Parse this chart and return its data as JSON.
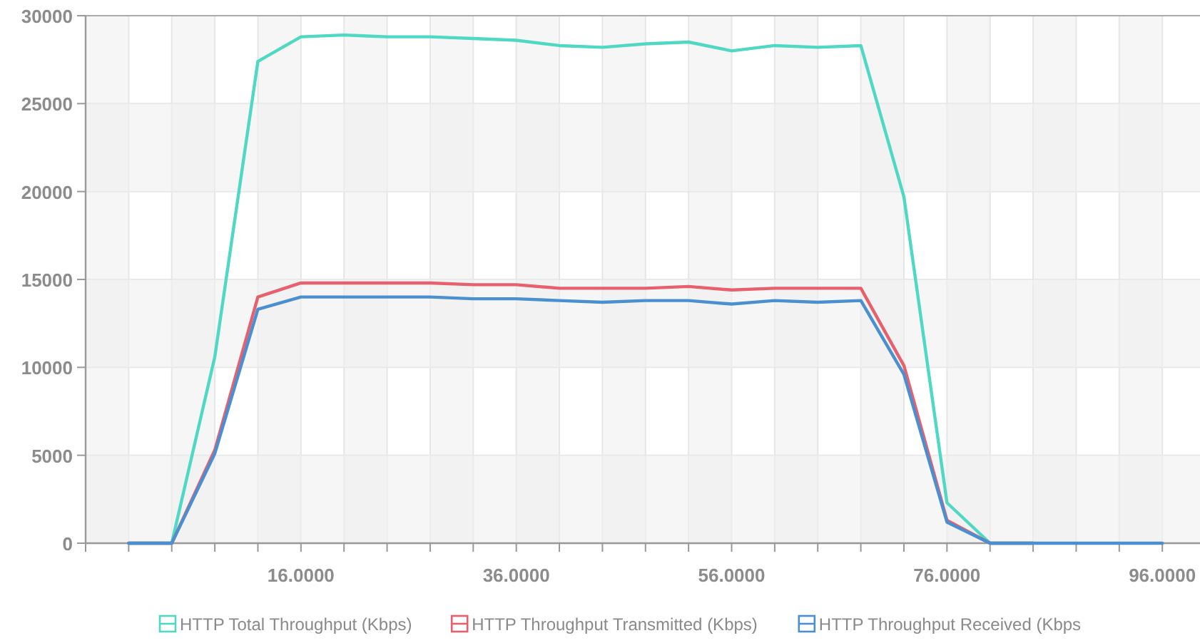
{
  "chart_data": {
    "type": "line",
    "x": [
      0,
      4,
      8,
      12,
      16,
      20,
      24,
      28,
      32,
      36,
      40,
      44,
      48,
      52,
      56,
      60,
      64,
      68,
      72,
      76,
      80,
      84,
      88,
      92,
      96
    ],
    "series": [
      {
        "name": "HTTP Total Throughput (Kbps)",
        "color": "#4fd8c4",
        "values": [
          0,
          0,
          10600,
          27400,
          28800,
          28900,
          28800,
          28800,
          28700,
          28600,
          28300,
          28200,
          28400,
          28500,
          28000,
          28300,
          28200,
          28300,
          19700,
          2300,
          0,
          0,
          null,
          null,
          null
        ]
      },
      {
        "name": "HTTP Throughput Transmitted (Kbps)",
        "color": "#e8606e",
        "values": [
          0,
          0,
          5300,
          14000,
          14800,
          14800,
          14800,
          14800,
          14700,
          14700,
          14500,
          14500,
          14500,
          14600,
          14400,
          14500,
          14500,
          14500,
          10100,
          1300,
          0,
          0,
          null,
          null,
          null
        ]
      },
      {
        "name": "HTTP Throughput Received (Kbps",
        "color": "#4a8fd0",
        "values": [
          0,
          0,
          5100,
          13300,
          14000,
          14000,
          14000,
          14000,
          13900,
          13900,
          13800,
          13700,
          13800,
          13800,
          13600,
          13800,
          13700,
          13800,
          9600,
          1200,
          0,
          0,
          0,
          0,
          0
        ]
      }
    ],
    "xlim": [
      -4,
      99.5
    ],
    "xticks": [
      {
        "value": -4,
        "label": null
      },
      {
        "value": 0,
        "label": null
      },
      {
        "value": 4,
        "label": null
      },
      {
        "value": 8,
        "label": null
      },
      {
        "value": 12,
        "label": null
      },
      {
        "value": 16,
        "label": "16.0000"
      },
      {
        "value": 20,
        "label": null
      },
      {
        "value": 24,
        "label": null
      },
      {
        "value": 28,
        "label": null
      },
      {
        "value": 32,
        "label": null
      },
      {
        "value": 36,
        "label": "36.0000"
      },
      {
        "value": 40,
        "label": null
      },
      {
        "value": 44,
        "label": null
      },
      {
        "value": 48,
        "label": null
      },
      {
        "value": 52,
        "label": null
      },
      {
        "value": 56,
        "label": "56.0000"
      },
      {
        "value": 60,
        "label": null
      },
      {
        "value": 64,
        "label": null
      },
      {
        "value": 68,
        "label": null
      },
      {
        "value": 72,
        "label": null
      },
      {
        "value": 76,
        "label": "76.0000"
      },
      {
        "value": 80,
        "label": null
      },
      {
        "value": 84,
        "label": null
      },
      {
        "value": 88,
        "label": null
      },
      {
        "value": 92,
        "label": null
      },
      {
        "value": 96,
        "label": "96.0000"
      }
    ],
    "ylim": [
      0,
      30000
    ],
    "yticks": [
      0,
      5000,
      10000,
      15000,
      20000,
      25000,
      30000
    ],
    "grid": true,
    "legend": "bottom",
    "marker": "none",
    "line_style": "solid"
  }
}
